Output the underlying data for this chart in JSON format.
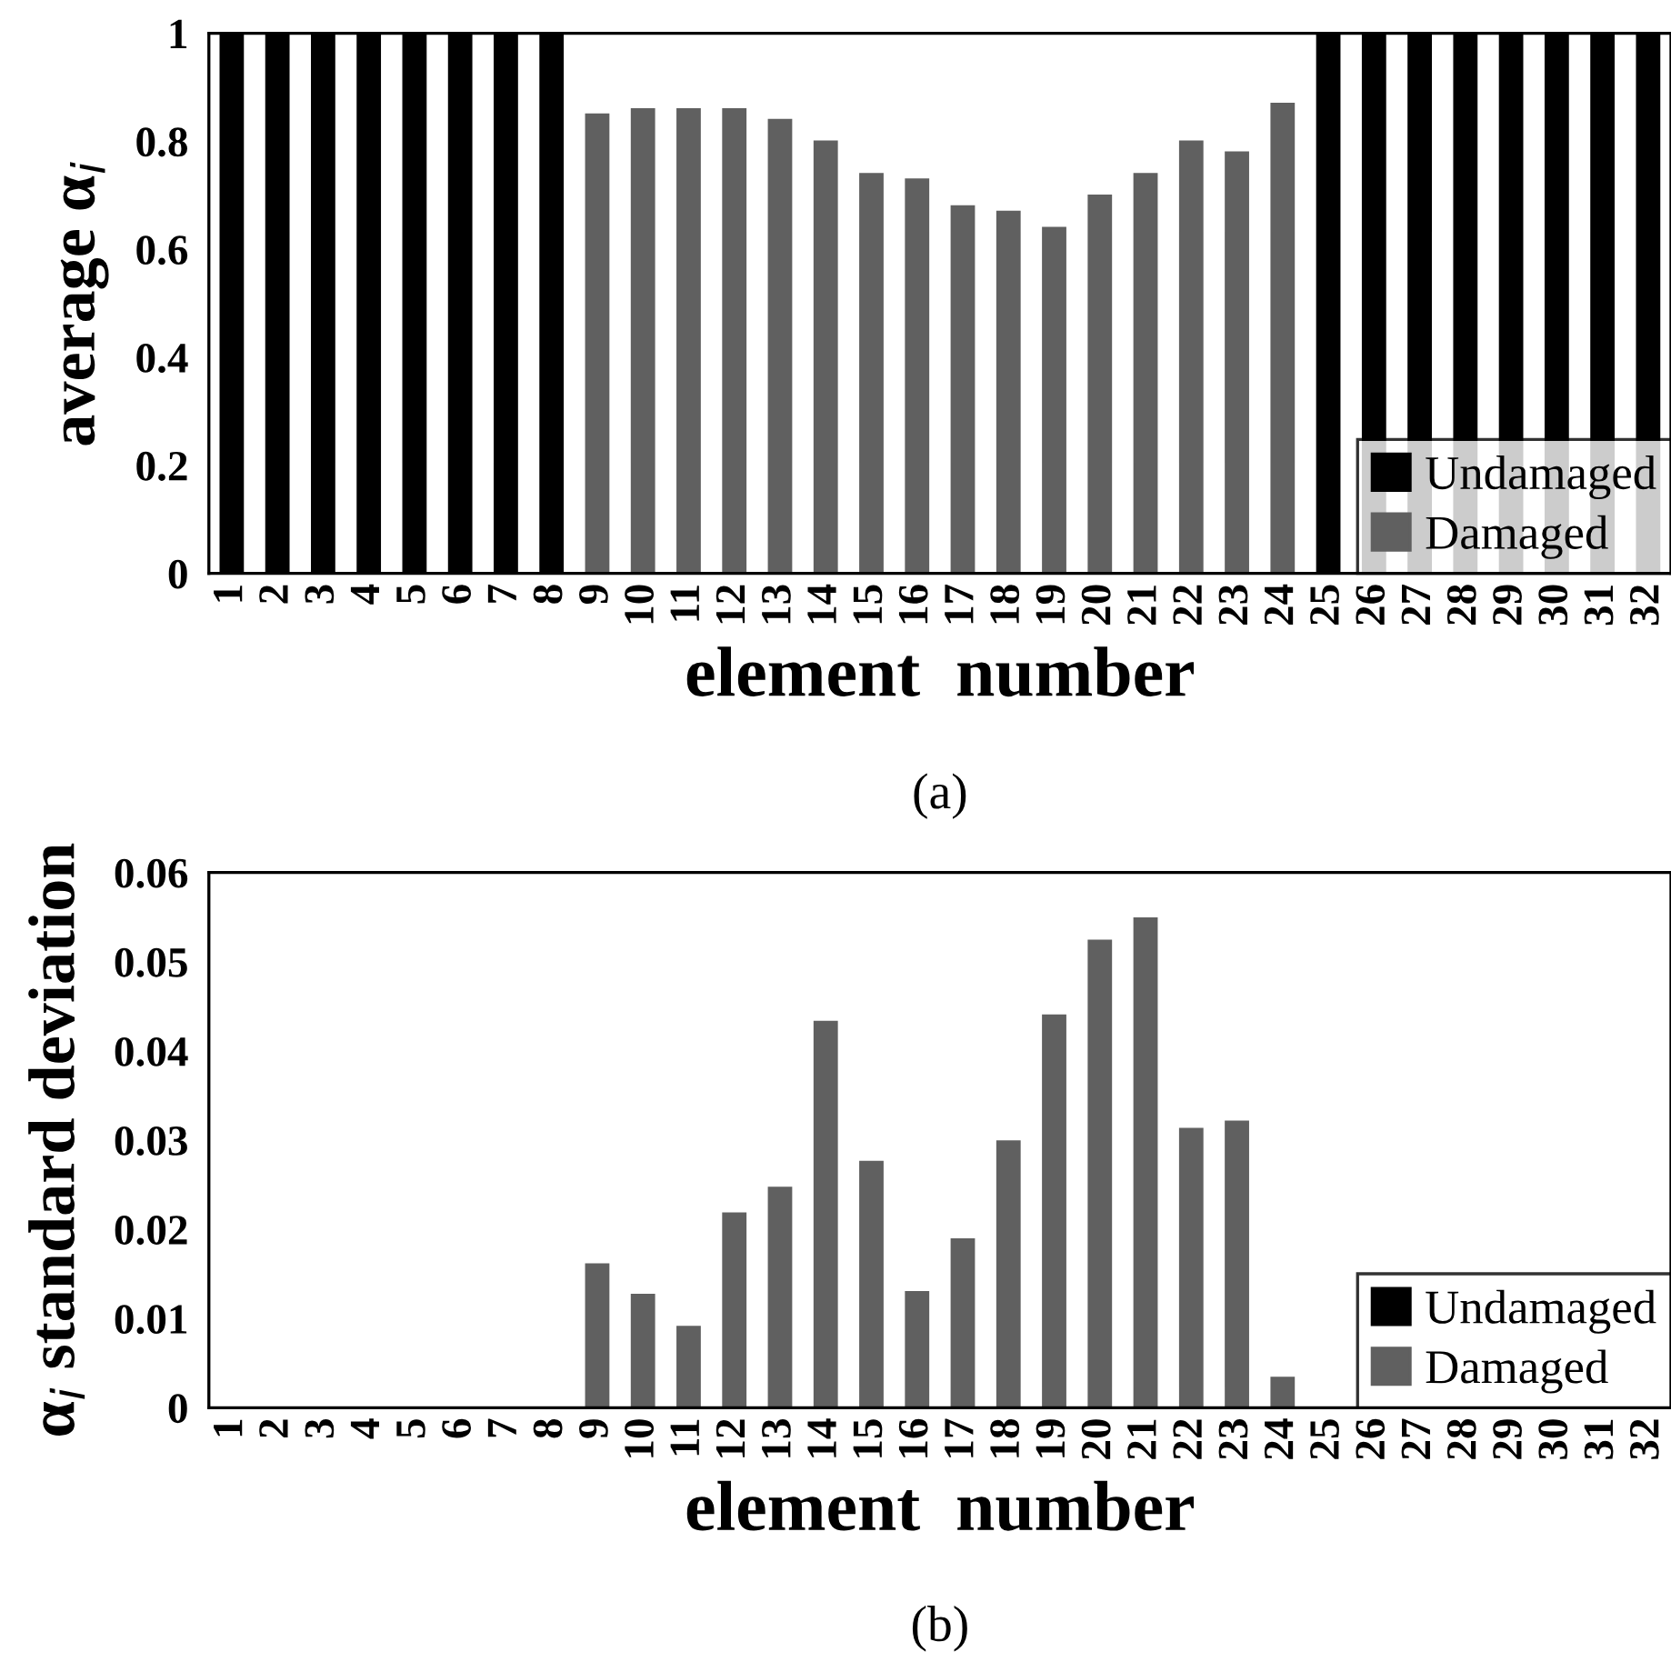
{
  "chart_data": [
    {
      "type": "bar",
      "xlabel": "element  number",
      "ylabel": "average α$_{i}$",
      "categories": [
        "1",
        "2",
        "3",
        "4",
        "5",
        "6",
        "7",
        "8",
        "9",
        "10",
        "11",
        "12",
        "13",
        "14",
        "15",
        "16",
        "17",
        "18",
        "19",
        "20",
        "21",
        "22",
        "23",
        "24",
        "25",
        "26",
        "27",
        "28",
        "29",
        "30",
        "31",
        "32"
      ],
      "series": [
        {
          "name": "Undamaged",
          "color": "#000000",
          "values": [
            1,
            1,
            1,
            1,
            1,
            1,
            1,
            1,
            null,
            null,
            null,
            null,
            null,
            null,
            null,
            null,
            null,
            null,
            null,
            null,
            null,
            null,
            null,
            null,
            1,
            1,
            1,
            1,
            1,
            1,
            1,
            1
          ]
        },
        {
          "name": "Damaged",
          "color": "#606060",
          "values": [
            null,
            null,
            null,
            null,
            null,
            null,
            null,
            null,
            0.85,
            0.86,
            0.86,
            0.86,
            0.84,
            0.8,
            0.74,
            0.73,
            0.68,
            0.67,
            0.64,
            0.7,
            0.74,
            0.8,
            0.78,
            0.87,
            null,
            null,
            null,
            null,
            null,
            null,
            null,
            null
          ]
        }
      ],
      "ylim": [
        0,
        1
      ],
      "yticks": [
        0,
        0.2,
        0.4,
        0.6,
        0.8,
        1
      ],
      "grid": false,
      "legend": "bottom right",
      "annotations": [
        "(a)"
      ]
    },
    {
      "type": "bar",
      "xlabel": "element  number",
      "ylabel": "α$_{i}$ standard deviation",
      "categories": [
        "1",
        "2",
        "3",
        "4",
        "5",
        "6",
        "7",
        "8",
        "9",
        "10",
        "11",
        "12",
        "13",
        "14",
        "15",
        "16",
        "17",
        "18",
        "19",
        "20",
        "21",
        "22",
        "23",
        "24",
        "25",
        "26",
        "27",
        "28",
        "29",
        "30",
        "31",
        "32"
      ],
      "series": [
        {
          "name": "Undamaged",
          "color": "#000000",
          "values": [
            0,
            0,
            0,
            0,
            0,
            0,
            0,
            0,
            null,
            null,
            null,
            null,
            null,
            null,
            null,
            null,
            null,
            null,
            null,
            null,
            null,
            null,
            null,
            null,
            0,
            0,
            0,
            0,
            0,
            0,
            0,
            0
          ]
        },
        {
          "name": "Damaged",
          "color": "#606060",
          "values": [
            null,
            null,
            null,
            null,
            null,
            null,
            null,
            null,
            0.0161,
            0.0127,
            0.0091,
            0.0218,
            0.0247,
            0.0433,
            0.0276,
            0.013,
            0.0189,
            0.0299,
            0.044,
            0.0524,
            0.0549,
            0.0313,
            0.0321,
            0.0034,
            null,
            null,
            null,
            null,
            null,
            null,
            null,
            null
          ]
        }
      ],
      "ylim": [
        0,
        0.06
      ],
      "yticks": [
        0,
        0.01,
        0.02,
        0.03,
        0.04,
        0.05,
        0.06
      ],
      "grid": false,
      "legend": "bottom right",
      "annotations": [
        "(b)"
      ]
    }
  ]
}
